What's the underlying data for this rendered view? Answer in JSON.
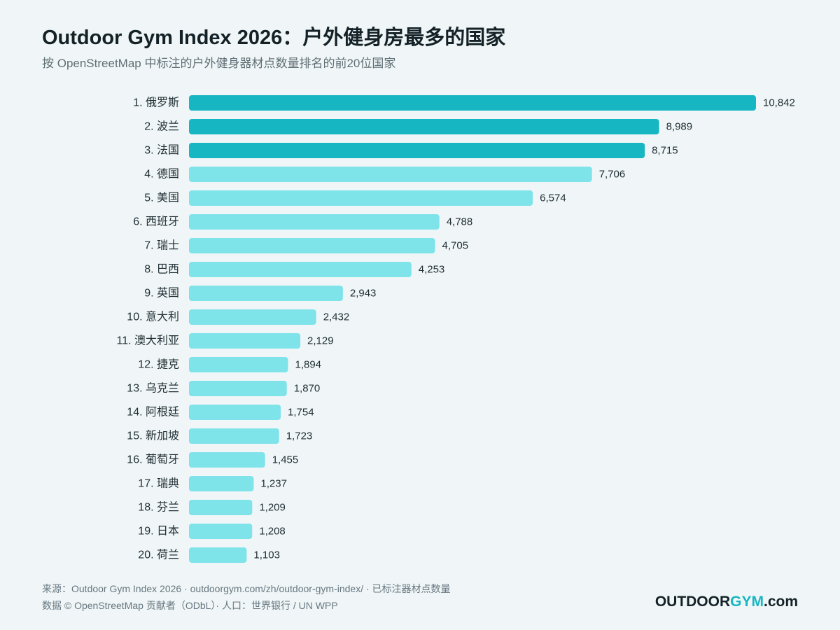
{
  "header": {
    "title": "Outdoor Gym Index 2026：户外健身房最多的国家",
    "subtitle": "按 OpenStreetMap 中标注的户外健身器材点数量排名的前20位国家"
  },
  "chart_data": {
    "type": "bar",
    "orientation": "horizontal",
    "categories": [
      "1. 俄罗斯",
      "2. 波兰",
      "3. 法国",
      "4. 德国",
      "5. 美国",
      "6. 西班牙",
      "7. 瑞士",
      "8. 巴西",
      "9. 英国",
      "10. 意大利",
      "11. 澳大利亚",
      "12. 捷克",
      "13. 乌克兰",
      "14. 阿根廷",
      "15. 新加坡",
      "16. 葡萄牙",
      "17. 瑞典",
      "18. 芬兰",
      "19. 日本",
      "20. 荷兰"
    ],
    "values": [
      10842,
      8989,
      8715,
      7706,
      6574,
      4788,
      4705,
      4253,
      2943,
      2432,
      2129,
      1894,
      1870,
      1754,
      1723,
      1455,
      1237,
      1209,
      1208,
      1103
    ],
    "value_labels": [
      "10,842",
      "8,989",
      "8,715",
      "7,706",
      "6,574",
      "4,788",
      "4,705",
      "4,253",
      "2,943",
      "2,432",
      "2,129",
      "1,894",
      "1,870",
      "1,754",
      "1,723",
      "1,455",
      "1,237",
      "1,209",
      "1,208",
      "1,103"
    ],
    "xlim": [
      0,
      10842
    ],
    "grid": false,
    "highlight_top": 3,
    "colors": {
      "highlight": "#17b6c3",
      "default": "#7fe3ea"
    }
  },
  "footer": {
    "source_line": "来源：Outdoor Gym Index 2026 · outdoorgym.com/zh/outdoor-gym-index/ · 已标注器材点数量",
    "data_line": "数据 © OpenStreetMap 贡献者（ODbL）· 人口：世界银行 / UN WPP"
  },
  "brand": {
    "part1": "OUTDOOR",
    "part2": "GYM",
    "part3": ".com"
  }
}
